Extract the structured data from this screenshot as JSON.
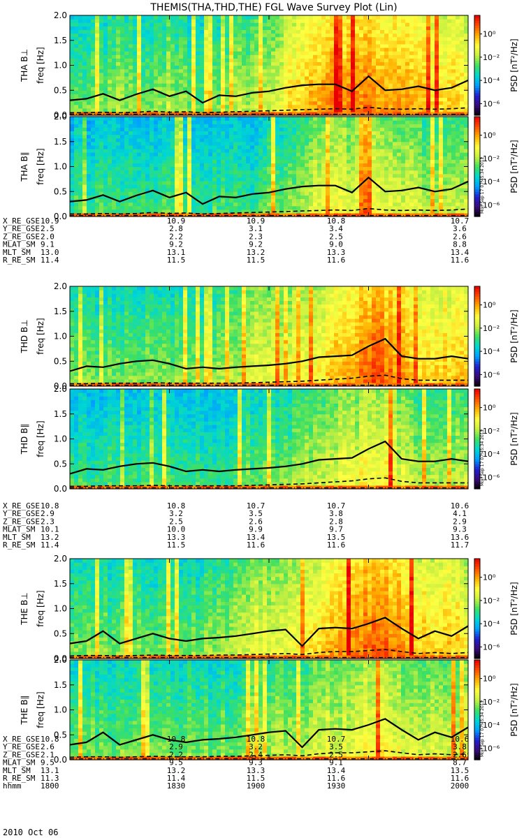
{
  "title": "THEMIS(THA,THD,THE) FGL Wave Survey Plot (Lin)",
  "date_label": "2010 Oct 06",
  "colorbar": {
    "label": "PSD [nT²/Hz]",
    "ticks": [
      "10⁰",
      "10⁻²",
      "10⁻⁴",
      "10⁻⁶"
    ],
    "tick_values": [
      0,
      -2,
      -4,
      -6
    ],
    "range_log10": [
      -7,
      1.6
    ],
    "colors": [
      "#000000",
      "#3a0a7a",
      "#2020d0",
      "#00a0ff",
      "#00d8d0",
      "#40e060",
      "#c8f040",
      "#ffff40",
      "#ffb000",
      "#ff5000",
      "#e80000"
    ]
  },
  "line_style": {
    "solid_color": "#000000",
    "dashed_color": "#000000"
  },
  "stamp": "Mon Sep 17 07:45:34 2012",
  "chart_data": [
    {
      "type": "heatmap",
      "probe": "THA",
      "component": "perp",
      "ylabel": "THA B⊥",
      "ylabel2": "freq [Hz]",
      "ylim": [
        0,
        2.0
      ],
      "yticks": [
        "0.0",
        "0.5",
        "1.0",
        "1.5",
        "2.0"
      ],
      "ytick_values": [
        0,
        0.5,
        1.0,
        1.5,
        2.0
      ],
      "xlim_hhmm": [
        1800,
        2000
      ],
      "solid_line": [
        0.3,
        0.33,
        0.43,
        0.3,
        0.42,
        0.52,
        0.38,
        0.48,
        0.25,
        0.4,
        0.38,
        0.45,
        0.48,
        0.55,
        0.6,
        0.62,
        0.62,
        0.48,
        0.78,
        0.5,
        0.52,
        0.58,
        0.5,
        0.55,
        0.7
      ],
      "dashed_line": [
        0.05,
        0.05,
        0.06,
        0.05,
        0.06,
        0.08,
        0.06,
        0.07,
        0.05,
        0.06,
        0.07,
        0.08,
        0.09,
        0.1,
        0.11,
        0.12,
        0.13,
        0.12,
        0.16,
        0.13,
        0.12,
        0.13,
        0.12,
        0.13,
        0.15
      ],
      "dashdot_line": [
        0.02,
        0.02,
        0.02,
        0.02,
        0.02,
        0.02,
        0.02,
        0.02,
        0.02,
        0.02,
        0.02,
        0.02,
        0.02,
        0.02,
        0.02,
        0.02,
        0.02,
        0.02,
        0.02,
        0.02,
        0.02,
        0.02,
        0.02,
        0.02,
        0.02
      ],
      "psd_profile": [
        -3,
        -3,
        -3,
        -2.5,
        -3,
        -3,
        -2.5,
        -3,
        -3,
        -3,
        -2.5,
        -2.5,
        -2,
        -1.5,
        -1,
        -0.5,
        -0.5,
        -0.5,
        0,
        -0.5,
        -0.5,
        -1,
        -1,
        -1,
        -1.5
      ]
    },
    {
      "type": "heatmap",
      "probe": "THA",
      "component": "par",
      "ylabel": "THA B∥",
      "ylabel2": "freq [Hz]",
      "ylim": [
        0,
        2.0
      ],
      "yticks": [
        "0.0",
        "0.5",
        "1.0",
        "1.5",
        "2.0"
      ],
      "ytick_values": [
        0,
        0.5,
        1.0,
        1.5,
        2.0
      ],
      "xlim_hhmm": [
        1800,
        2000
      ],
      "solid_line": [
        0.3,
        0.33,
        0.43,
        0.3,
        0.42,
        0.52,
        0.38,
        0.48,
        0.25,
        0.4,
        0.38,
        0.45,
        0.48,
        0.55,
        0.6,
        0.62,
        0.62,
        0.48,
        0.78,
        0.5,
        0.52,
        0.58,
        0.5,
        0.55,
        0.7
      ],
      "dashed_line": [
        0.05,
        0.05,
        0.06,
        0.05,
        0.06,
        0.08,
        0.06,
        0.07,
        0.05,
        0.06,
        0.07,
        0.08,
        0.09,
        0.1,
        0.11,
        0.12,
        0.13,
        0.12,
        0.16,
        0.13,
        0.12,
        0.13,
        0.12,
        0.13,
        0.15
      ],
      "dashdot_line": [
        0.02,
        0.02,
        0.02,
        0.02,
        0.02,
        0.02,
        0.02,
        0.02,
        0.02,
        0.02,
        0.02,
        0.02,
        0.02,
        0.02,
        0.02,
        0.02,
        0.02,
        0.02,
        0.02,
        0.02,
        0.02,
        0.02,
        0.02,
        0.02,
        0.02
      ],
      "psd_profile": [
        -3.5,
        -3.5,
        -3.5,
        -3.5,
        -3.5,
        -3.5,
        -3.5,
        -3.5,
        -3.5,
        -3.5,
        -3.5,
        -3.5,
        -3,
        -3,
        -2.5,
        -2,
        -2,
        -2,
        -1.5,
        -2,
        -2,
        -2.5,
        -2.5,
        -2.5,
        -2.5
      ]
    },
    {
      "type": "heatmap",
      "probe": "THD",
      "component": "perp",
      "ylabel": "THD B⊥",
      "ylabel2": "freq [Hz]",
      "ylim": [
        0,
        2.0
      ],
      "yticks": [
        "0.0",
        "0.5",
        "1.0",
        "1.5",
        "2.0"
      ],
      "ytick_values": [
        0,
        0.5,
        1.0,
        1.5,
        2.0
      ],
      "xlim_hhmm": [
        1800,
        2000
      ],
      "solid_line": [
        0.3,
        0.4,
        0.38,
        0.45,
        0.5,
        0.52,
        0.45,
        0.35,
        0.38,
        0.35,
        0.38,
        0.4,
        0.42,
        0.45,
        0.5,
        0.58,
        0.6,
        0.62,
        0.8,
        0.95,
        0.6,
        0.55,
        0.55,
        0.6,
        0.55
      ],
      "dashed_line": [
        0.05,
        0.05,
        0.06,
        0.06,
        0.06,
        0.07,
        0.06,
        0.06,
        0.06,
        0.06,
        0.06,
        0.07,
        0.08,
        0.09,
        0.1,
        0.12,
        0.14,
        0.16,
        0.2,
        0.22,
        0.15,
        0.12,
        0.12,
        0.12,
        0.12
      ],
      "dashdot_line": [
        0.02,
        0.02,
        0.02,
        0.02,
        0.02,
        0.02,
        0.02,
        0.02,
        0.02,
        0.02,
        0.02,
        0.02,
        0.02,
        0.02,
        0.02,
        0.02,
        0.02,
        0.02,
        0.02,
        0.02,
        0.02,
        0.02,
        0.02,
        0.02,
        0.02
      ],
      "psd_profile": [
        -3,
        -3,
        -3,
        -3,
        -3,
        -3,
        -3,
        -3,
        -3,
        -2.5,
        -2.5,
        -2,
        -2,
        -2,
        -1.5,
        -1.5,
        -1,
        -0.5,
        0,
        0,
        -0.5,
        -1,
        -1,
        -1,
        -1
      ]
    },
    {
      "type": "heatmap",
      "probe": "THD",
      "component": "par",
      "ylabel": "THD B∥",
      "ylabel2": "freq [Hz]",
      "ylim": [
        0,
        2.0
      ],
      "yticks": [
        "0.0",
        "0.5",
        "1.0",
        "1.5",
        "2.0"
      ],
      "ytick_values": [
        0,
        0.5,
        1.0,
        1.5,
        2.0
      ],
      "xlim_hhmm": [
        1800,
        2000
      ],
      "solid_line": [
        0.3,
        0.4,
        0.38,
        0.45,
        0.5,
        0.52,
        0.45,
        0.35,
        0.38,
        0.35,
        0.38,
        0.4,
        0.42,
        0.45,
        0.5,
        0.58,
        0.6,
        0.62,
        0.8,
        0.95,
        0.6,
        0.55,
        0.55,
        0.6,
        0.55
      ],
      "dashed_line": [
        0.05,
        0.05,
        0.06,
        0.06,
        0.06,
        0.07,
        0.06,
        0.06,
        0.06,
        0.06,
        0.06,
        0.07,
        0.08,
        0.09,
        0.1,
        0.12,
        0.14,
        0.16,
        0.2,
        0.22,
        0.15,
        0.12,
        0.12,
        0.12,
        0.12
      ],
      "dashdot_line": [
        0.02,
        0.02,
        0.02,
        0.02,
        0.02,
        0.02,
        0.02,
        0.02,
        0.02,
        0.02,
        0.02,
        0.02,
        0.02,
        0.02,
        0.02,
        0.02,
        0.02,
        0.02,
        0.02,
        0.02,
        0.02,
        0.02,
        0.02,
        0.02,
        0.02
      ],
      "psd_profile": [
        -3.5,
        -3.5,
        -3.5,
        -3.5,
        -3.5,
        -3.5,
        -3.5,
        -3.5,
        -3.5,
        -3.5,
        -3.5,
        -3,
        -3,
        -3,
        -2.5,
        -2.5,
        -2,
        -2,
        -1.5,
        -1.5,
        -2,
        -2.5,
        -2.5,
        -2.5,
        -2.5
      ]
    },
    {
      "type": "heatmap",
      "probe": "THE",
      "component": "perp",
      "ylabel": "THE B⊥",
      "ylabel2": "freq [Hz]",
      "ylim": [
        0,
        2.0
      ],
      "yticks": [
        "0.0",
        "0.5",
        "1.0",
        "1.5",
        "2.0"
      ],
      "ytick_values": [
        0,
        0.5,
        1.0,
        1.5,
        2.0
      ],
      "xlim_hhmm": [
        1800,
        2000
      ],
      "solid_line": [
        0.3,
        0.35,
        0.55,
        0.3,
        0.4,
        0.5,
        0.4,
        0.35,
        0.4,
        0.42,
        0.45,
        0.5,
        0.55,
        0.58,
        0.25,
        0.6,
        0.62,
        0.6,
        0.7,
        0.82,
        0.6,
        0.4,
        0.55,
        0.45,
        0.65
      ],
      "dashed_line": [
        0.05,
        0.06,
        0.06,
        0.05,
        0.06,
        0.07,
        0.06,
        0.06,
        0.06,
        0.07,
        0.07,
        0.08,
        0.09,
        0.1,
        0.08,
        0.12,
        0.14,
        0.14,
        0.16,
        0.18,
        0.14,
        0.1,
        0.12,
        0.1,
        0.12
      ],
      "dashdot_line": [
        0.02,
        0.02,
        0.02,
        0.02,
        0.02,
        0.02,
        0.02,
        0.02,
        0.02,
        0.02,
        0.02,
        0.02,
        0.02,
        0.02,
        0.02,
        0.02,
        0.02,
        0.02,
        0.02,
        0.02,
        0.02,
        0.02,
        0.02,
        0.02,
        0.02
      ],
      "psd_profile": [
        -3,
        -3,
        -3,
        -3,
        -3,
        -3,
        -3,
        -3,
        -3,
        -2.5,
        -2.5,
        -2,
        -2,
        -2,
        -1.5,
        -1,
        -0.5,
        -0.5,
        0,
        0,
        -0.5,
        -1,
        -1,
        -1,
        -1.5
      ]
    },
    {
      "type": "heatmap",
      "probe": "THE",
      "component": "par",
      "ylabel": "THE B∥",
      "ylabel2": "freq [Hz]",
      "ylim": [
        0,
        2.0
      ],
      "yticks": [
        "0.0",
        "0.5",
        "1.0",
        "1.5",
        "2.0"
      ],
      "ytick_values": [
        0,
        0.5,
        1.0,
        1.5,
        2.0
      ],
      "xlim_hhmm": [
        1800,
        2000
      ],
      "solid_line": [
        0.3,
        0.35,
        0.55,
        0.3,
        0.4,
        0.5,
        0.4,
        0.35,
        0.4,
        0.42,
        0.45,
        0.5,
        0.55,
        0.58,
        0.25,
        0.6,
        0.62,
        0.6,
        0.7,
        0.82,
        0.6,
        0.4,
        0.55,
        0.45,
        0.65
      ],
      "dashed_line": [
        0.05,
        0.06,
        0.06,
        0.05,
        0.06,
        0.07,
        0.06,
        0.06,
        0.06,
        0.07,
        0.07,
        0.08,
        0.09,
        0.1,
        0.08,
        0.12,
        0.14,
        0.14,
        0.16,
        0.18,
        0.14,
        0.1,
        0.12,
        0.1,
        0.12
      ],
      "dashdot_line": [
        0.02,
        0.02,
        0.02,
        0.02,
        0.02,
        0.02,
        0.02,
        0.02,
        0.02,
        0.02,
        0.02,
        0.02,
        0.02,
        0.02,
        0.02,
        0.02,
        0.02,
        0.02,
        0.02,
        0.02,
        0.02,
        0.02,
        0.02,
        0.02,
        0.02
      ],
      "psd_profile": [
        -3,
        -3,
        -3,
        -3,
        -3,
        -3,
        -3,
        -3,
        -3,
        -3,
        -3,
        -2.5,
        -2.5,
        -2.5,
        -2.5,
        -2,
        -2,
        -2,
        -1.5,
        -1.5,
        -2,
        -2,
        -2,
        -2,
        -2
      ]
    }
  ],
  "ephemeris": [
    {
      "probe": "THA",
      "rows": [
        {
          "label": "X_RE_GSE",
          "values": [
            "10.9",
            "10.9",
            "10.9",
            "10.8",
            "10.7"
          ]
        },
        {
          "label": "Y_RE_GSE",
          "values": [
            "2.5",
            "2.8",
            "3.1",
            "3.4",
            "3.6"
          ]
        },
        {
          "label": "Z_RE_GSE",
          "values": [
            "2.0",
            "2.2",
            "2.3",
            "2.5",
            "2.6"
          ]
        },
        {
          "label": "MLAT_SM",
          "values": [
            "9.1",
            "9.2",
            "9.2",
            "9.0",
            "8.8"
          ]
        },
        {
          "label": "MLT_SM",
          "values": [
            "13.0",
            "13.1",
            "13.2",
            "13.3",
            "13.4"
          ]
        },
        {
          "label": "R_RE_SM",
          "values": [
            "11.4",
            "11.5",
            "11.5",
            "11.6",
            "11.6"
          ]
        }
      ]
    },
    {
      "probe": "THD",
      "rows": [
        {
          "label": "X_RE_GSE",
          "values": [
            "10.8",
            "10.8",
            "10.7",
            "10.7",
            "10.6"
          ]
        },
        {
          "label": "Y_RE_GSE",
          "values": [
            "2.9",
            "3.2",
            "3.5",
            "3.8",
            "4.1"
          ]
        },
        {
          "label": "Z_RE_GSE",
          "values": [
            "2.3",
            "2.5",
            "2.6",
            "2.8",
            "2.9"
          ]
        },
        {
          "label": "MLAT_SM",
          "values": [
            "10.1",
            "10.0",
            "9.9",
            "9.7",
            "9.3"
          ]
        },
        {
          "label": "MLT_SM",
          "values": [
            "13.2",
            "13.3",
            "13.4",
            "13.5",
            "13.6"
          ]
        },
        {
          "label": "R_RE_SM",
          "values": [
            "11.4",
            "11.5",
            "11.6",
            "11.6",
            "11.7"
          ]
        }
      ]
    },
    {
      "probe": "THE",
      "rows": [
        {
          "label": "X_RE_GSE",
          "values": [
            "10.8",
            "10.8",
            "10.8",
            "10.7",
            "10.6"
          ]
        },
        {
          "label": "Y_RE_GSE",
          "values": [
            "2.6",
            "2.9",
            "3.2",
            "3.5",
            "3.8"
          ]
        },
        {
          "label": "Z_RE_GSE",
          "values": [
            "2.1",
            "2.2",
            "2.4",
            "2.5",
            "2.6"
          ]
        },
        {
          "label": "MLAT_SM",
          "values": [
            "9.5",
            "9.5",
            "9.3",
            "9.1",
            "8.7"
          ]
        },
        {
          "label": "MLT_SM",
          "values": [
            "13.1",
            "13.2",
            "13.3",
            "13.4",
            "13.5"
          ]
        },
        {
          "label": "R_RE_SM",
          "values": [
            "11.3",
            "11.4",
            "11.5",
            "11.6",
            "11.6"
          ]
        },
        {
          "label": "hhmm",
          "values": [
            "1800",
            "1830",
            "1900",
            "1930",
            "2000"
          ]
        }
      ]
    }
  ]
}
